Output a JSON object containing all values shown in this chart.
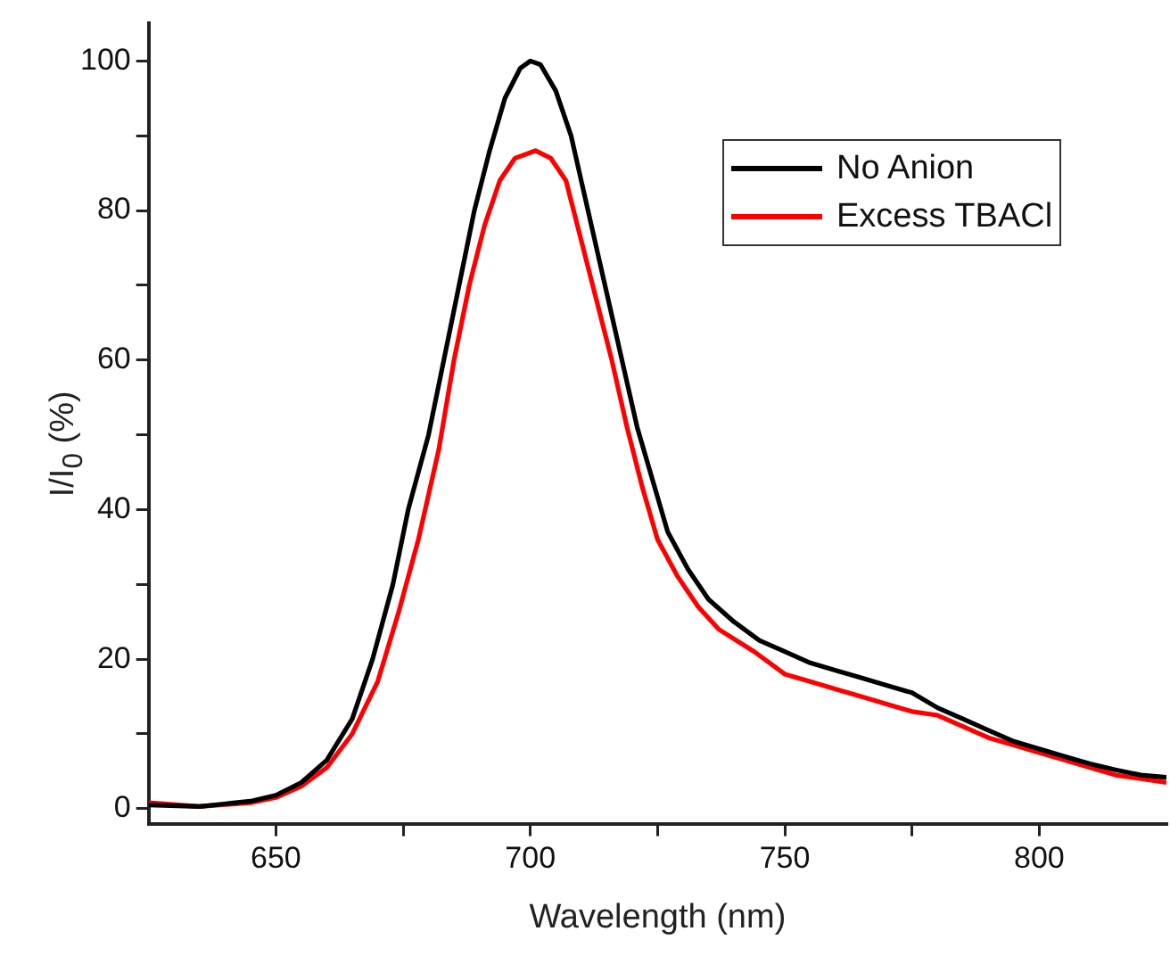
{
  "chart_data": {
    "type": "line",
    "xlabel": "Wavelength (nm)",
    "ylabel": "I/I$_{0}$ (%)",
    "xlim": [
      625,
      825
    ],
    "xticks": [
      650,
      {
        "value": 675,
        "label": null
      },
      700,
      {
        "value": 725,
        "label": null
      },
      750,
      {
        "value": 775,
        "label": null
      },
      800
    ],
    "ylim": [
      -2,
      105
    ],
    "yticks": [
      0,
      {
        "value": 10,
        "label": null
      },
      20,
      {
        "value": 30,
        "label": null
      },
      40,
      {
        "value": 50,
        "label": null
      },
      60,
      {
        "value": 70,
        "label": null
      },
      80,
      {
        "value": 90,
        "label": null
      },
      100
    ],
    "grid": false,
    "legend": "top right",
    "marker": "none",
    "line_style": "solid",
    "series": [
      {
        "name": "No Anion",
        "color": "#000000",
        "x": [
          625,
          635,
          645,
          650,
          655,
          660,
          665,
          669,
          673,
          676,
          680,
          683,
          686,
          689,
          692,
          695,
          698,
          700,
          702,
          705,
          708,
          710,
          713,
          716,
          718,
          721,
          724,
          727,
          731,
          735,
          740,
          745,
          750,
          755,
          760,
          765,
          770,
          775,
          780,
          785,
          790,
          795,
          800,
          805,
          810,
          815,
          820,
          825
        ],
        "values": [
          0.5,
          0.3,
          1,
          1.8,
          3.5,
          6.5,
          12,
          20,
          30,
          40,
          50,
          60,
          70,
          80,
          88,
          95,
          99,
          100,
          99.5,
          96,
          90,
          84,
          75,
          66,
          60,
          51,
          44,
          37,
          32,
          28,
          25,
          22.5,
          21,
          19.5,
          18.5,
          17.5,
          16.5,
          15.5,
          13.5,
          12,
          10.5,
          9,
          8,
          7,
          6,
          5.2,
          4.5,
          4.2
        ]
      },
      {
        "name": "Excess TBACl",
        "color": "#ff0000",
        "x": [
          625,
          635,
          645,
          650,
          655,
          660,
          665,
          670,
          674,
          678,
          682,
          685,
          688,
          691,
          694,
          697,
          701,
          704,
          707,
          710,
          713,
          716,
          719,
          722,
          725,
          729,
          733,
          737,
          744,
          750,
          755,
          760,
          765,
          770,
          775,
          780,
          785,
          790,
          795,
          800,
          805,
          810,
          815,
          820,
          825
        ],
        "values": [
          0.8,
          0.3,
          0.8,
          1.5,
          3,
          5.5,
          10,
          17,
          26,
          36,
          48,
          60,
          70,
          78,
          84,
          87,
          88,
          87,
          84,
          76,
          68,
          60,
          51,
          43,
          36,
          31,
          27,
          24,
          21,
          18,
          17,
          16,
          15,
          14,
          13,
          12.5,
          11,
          9.5,
          8.5,
          7.5,
          6.5,
          5.5,
          4.5,
          4,
          3.5
        ]
      }
    ]
  }
}
